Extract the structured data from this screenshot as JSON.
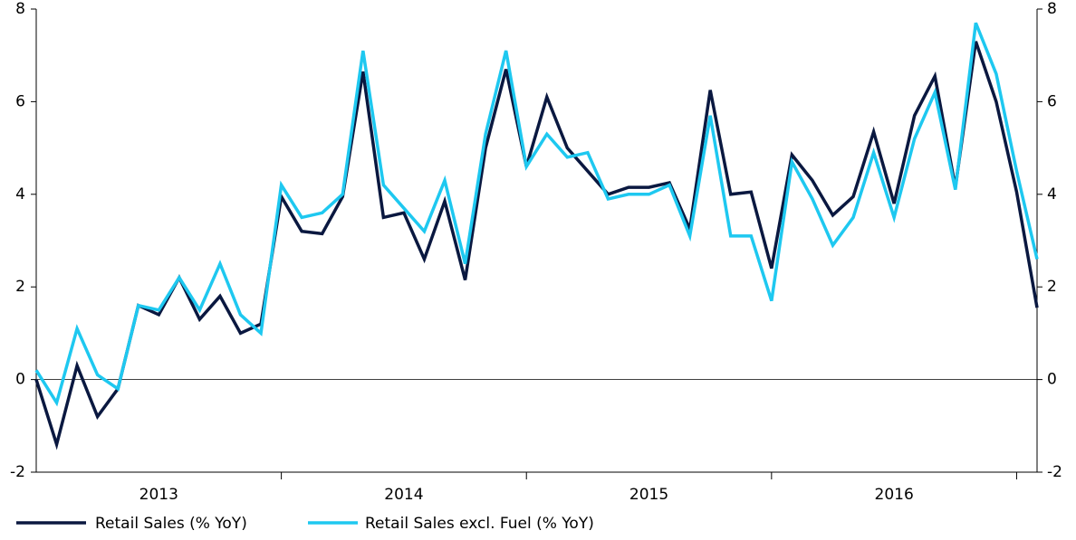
{
  "chart_data": {
    "type": "line",
    "categories": [
      null,
      null,
      null,
      null,
      null,
      null,
      null,
      null,
      null,
      null,
      null,
      null,
      null,
      null,
      null,
      null,
      null,
      null,
      null,
      null,
      null,
      null,
      null,
      null,
      null,
      null,
      null,
      null,
      null,
      null,
      null,
      null,
      null,
      null,
      null,
      null,
      null,
      null,
      null,
      null,
      null,
      null,
      null,
      null,
      null,
      null,
      null,
      null,
      null,
      null
    ],
    "year_labels": [
      "2013",
      "2014",
      "2015",
      "2016"
    ],
    "series": [
      {
        "name": "Retail Sales (% YoY)",
        "color": "#0a1840",
        "values": [
          0.0,
          -1.4,
          0.3,
          -0.8,
          -0.2,
          1.6,
          1.4,
          2.2,
          1.3,
          1.8,
          1.0,
          1.2,
          3.95,
          3.2,
          3.15,
          3.95,
          6.65,
          3.5,
          3.6,
          2.6,
          3.85,
          2.15,
          5.0,
          6.7,
          4.6,
          6.1,
          5.0,
          4.5,
          4.0,
          4.15,
          4.15,
          4.25,
          3.25,
          6.25,
          4.0,
          4.05,
          2.4,
          4.85,
          4.3,
          3.55,
          3.95,
          5.35,
          3.8,
          5.7,
          6.55,
          4.15,
          7.3,
          6.0,
          4.05,
          1.55
        ]
      },
      {
        "name": "Retail Sales excl. Fuel (% YoY)",
        "color": "#1ec8f0",
        "values": [
          0.2,
          -0.5,
          1.1,
          0.1,
          -0.2,
          1.6,
          1.5,
          2.2,
          1.5,
          2.5,
          1.4,
          1.0,
          4.2,
          3.5,
          3.6,
          4.0,
          7.1,
          4.2,
          3.7,
          3.2,
          4.3,
          2.5,
          5.3,
          7.1,
          4.6,
          5.3,
          4.8,
          4.9,
          3.9,
          4.0,
          4.0,
          4.2,
          3.1,
          5.7,
          3.1,
          3.1,
          1.7,
          4.7,
          3.9,
          2.9,
          3.5,
          4.9,
          3.5,
          5.2,
          6.2,
          4.1,
          7.7,
          6.6,
          4.5,
          2.6
        ]
      }
    ],
    "ylim": [
      -2,
      8
    ],
    "yticks": [
      -2,
      0,
      2,
      4,
      6,
      8
    ],
    "y2lim": [
      -2,
      8
    ],
    "y2ticks": [
      -2,
      0,
      2,
      4,
      6,
      8
    ],
    "legend": "bottom-left"
  }
}
